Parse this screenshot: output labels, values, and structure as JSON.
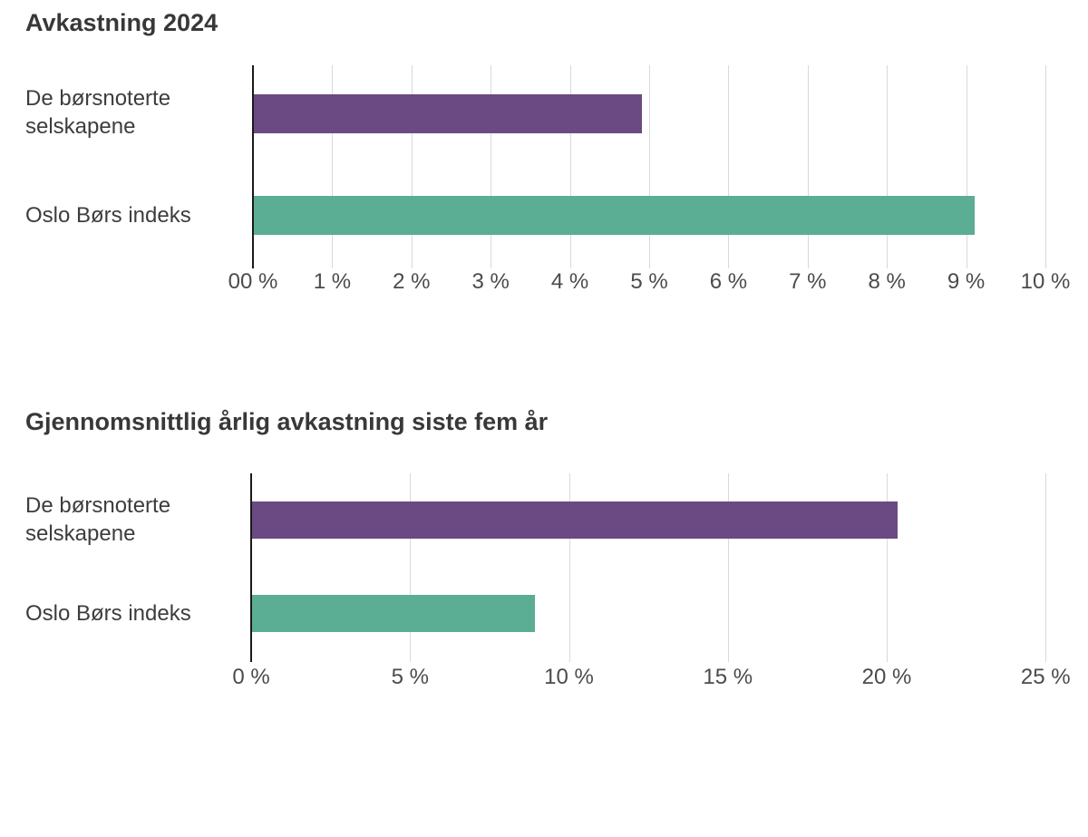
{
  "page": {
    "background": "#ffffff"
  },
  "styles": {
    "bar_purple": "#6b4a84",
    "bar_teal": "#5bad94",
    "axis_color": "#1a1a1a",
    "grid_color": "#d9d9d9",
    "title_color": "#383838",
    "label_color": "#3d3d3d",
    "tick_color": "#4b4b4b"
  },
  "chart_data": [
    {
      "type": "bar",
      "orientation": "horizontal",
      "title": "Avkastning 2024",
      "categories": [
        "De børsnoterte selskapene",
        "Oslo Børs indeks"
      ],
      "values": [
        4.9,
        9.1
      ],
      "unit": "%",
      "colors": [
        "#6b4a84",
        "#5bad94"
      ],
      "xlim": [
        0,
        10
      ],
      "xtick_values": [
        0,
        1,
        2,
        3,
        4,
        5,
        6,
        7,
        8,
        9,
        10
      ],
      "xtick_labels": [
        "00 %",
        "1 %",
        "2 %",
        "3 %",
        "4 %",
        "5 %",
        "6 %",
        "7 %",
        "8 %",
        "9 %",
        "10 %"
      ],
      "grid": true,
      "legend": "none"
    },
    {
      "type": "bar",
      "orientation": "horizontal",
      "title": "Gjennomsnittlig årlig avkastning siste fem år",
      "categories": [
        "De børsnoterte selskapene",
        "Oslo Børs indeks"
      ],
      "values": [
        20.3,
        8.9
      ],
      "unit": "%",
      "colors": [
        "#6b4a84",
        "#5bad94"
      ],
      "xlim": [
        0,
        25
      ],
      "xtick_values": [
        0,
        5,
        10,
        15,
        20,
        25
      ],
      "xtick_labels": [
        "0 %",
        "5 %",
        "10 %",
        "15 %",
        "20 %",
        "25 %"
      ],
      "grid": true,
      "legend": "none"
    }
  ]
}
